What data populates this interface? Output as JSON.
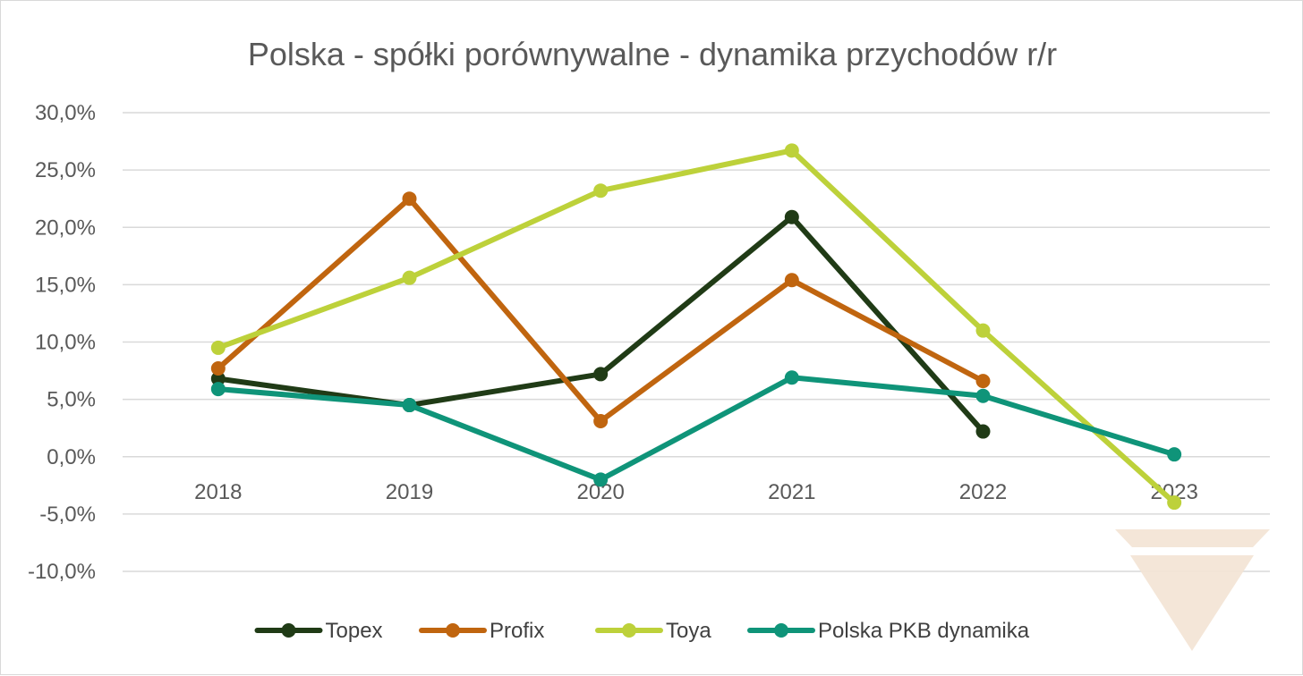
{
  "chart_data": {
    "type": "line",
    "title": "Polska - spółki porównywalne - dynamika przychodów r/r",
    "xlabel": "",
    "ylabel": "",
    "categories": [
      "2018",
      "2019",
      "2020",
      "2021",
      "2022",
      "2023"
    ],
    "y_ticks": [
      "30,0%",
      "25,0%",
      "20,0%",
      "15,0%",
      "10,0%",
      "5,0%",
      "0,0%",
      "-5,0%",
      "-10,0%"
    ],
    "ylim": [
      -10,
      30
    ],
    "grid": true,
    "legend_position": "bottom",
    "series": [
      {
        "name": "Topex",
        "color": "#203b16",
        "values": [
          6.8,
          4.5,
          7.2,
          20.9,
          2.2,
          null
        ]
      },
      {
        "name": "Profix",
        "color": "#c0650f",
        "values": [
          7.7,
          22.5,
          3.1,
          15.4,
          6.6,
          null
        ]
      },
      {
        "name": "Toya",
        "color": "#bdd13a",
        "values": [
          9.5,
          15.6,
          23.2,
          26.7,
          11.0,
          -4.0
        ]
      },
      {
        "name": "Polska PKB dynamika",
        "color": "#0f9479",
        "values": [
          5.9,
          4.5,
          -2.0,
          6.9,
          5.3,
          0.2
        ]
      }
    ]
  },
  "watermark": {
    "name": "logo-watermark",
    "color": "#f3e3d4"
  }
}
